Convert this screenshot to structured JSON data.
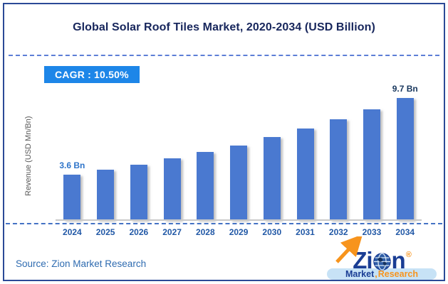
{
  "title": "Global Solar Roof Tiles Market, 2020-2034 (USD Billion)",
  "cagr_label": "CAGR :  10.50%",
  "chart_data": {
    "type": "bar",
    "categories": [
      "2024",
      "2025",
      "2026",
      "2027",
      "2028",
      "2029",
      "2030",
      "2031",
      "2032",
      "2033",
      "2034"
    ],
    "values": [
      3.6,
      4.0,
      4.4,
      4.9,
      5.4,
      5.9,
      6.6,
      7.3,
      8.0,
      8.8,
      9.7
    ],
    "title": "Global Solar Roof Tiles Market, 2020-2034 (USD Billion)",
    "xlabel": "",
    "ylabel": "Revenue (USD Mn/Bn)",
    "ylim": [
      0,
      10
    ],
    "grid": false,
    "legend": "none",
    "bar_color": "#4A79D0",
    "bar_labels": {
      "first": "3.6 Bn",
      "last": "9.7 Bn"
    },
    "bar_label_colors": {
      "first": "#2E74C9",
      "last": "#17365D"
    },
    "cagr": "10.50%"
  },
  "source": "Source: Zion Market Research",
  "logo": {
    "z": "Z",
    "i": "i",
    "n": "n",
    "registered": "®",
    "market": "Market",
    "comma": ",",
    "research": "Research",
    "navy": "#1A3D94",
    "orange": "#F7941D",
    "band_bg": "#C7E2F6"
  },
  "colors": {
    "frame_border": "#2B4A97",
    "title_text": "#17265C",
    "divider_dashed": "#5C7ED6",
    "cagr_bg": "#1D86E8",
    "cagr_text": "#FFFFFF",
    "axis_label": "#595959",
    "axis_baseline": "#C9C9C9",
    "axis_dashed": "#4472C4",
    "x_label": "#2158A6",
    "source_text": "#2E6BB0"
  }
}
